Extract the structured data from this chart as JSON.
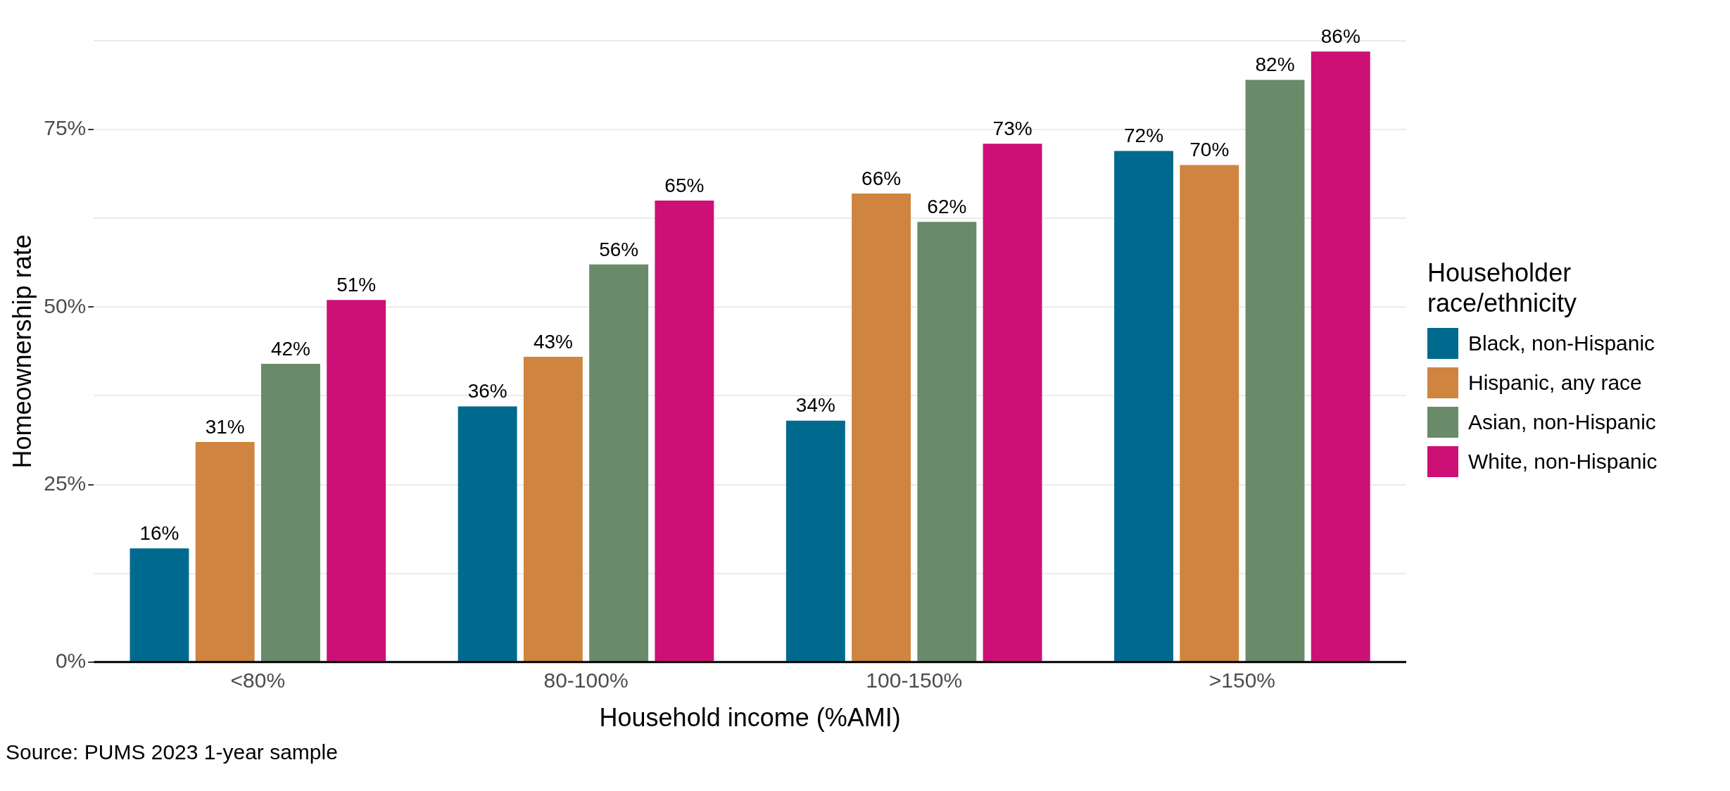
{
  "chart_data": {
    "type": "bar",
    "xlabel": "Household income (%AMI)",
    "ylabel": "Homeownership rate",
    "legend_title": "Householder race/ethnicity",
    "categories": [
      "<80%",
      "80-100%",
      "100-150%",
      ">150%"
    ],
    "series": [
      {
        "name": "Black, non-Hispanic",
        "color": "#006a8e",
        "values": [
          16,
          36,
          34,
          72
        ],
        "value_labels": [
          "16%",
          "36%",
          "34%",
          "72%"
        ]
      },
      {
        "name": "Hispanic, any race",
        "color": "#cf853f",
        "values": [
          31,
          43,
          66,
          70
        ],
        "value_labels": [
          "31%",
          "43%",
          "66%",
          "70%"
        ]
      },
      {
        "name": "Asian, non-Hispanic",
        "color": "#6a8b6a",
        "values": [
          42,
          56,
          62,
          82
        ],
        "value_labels": [
          "42%",
          "56%",
          "62%",
          "82%"
        ]
      },
      {
        "name": "White, non-Hispanic",
        "color": "#cd1076",
        "values": [
          51,
          65,
          73,
          86
        ],
        "value_labels": [
          "51%",
          "65%",
          "73%",
          "86%"
        ]
      }
    ],
    "ylim": [
      0,
      87.5
    ],
    "yticks": [
      {
        "value": 0,
        "label": "0%"
      },
      {
        "value": 12.5,
        "label": null
      },
      {
        "value": 25,
        "label": "25%"
      },
      {
        "value": 37.5,
        "label": null
      },
      {
        "value": 50,
        "label": "50%"
      },
      {
        "value": 62.5,
        "label": null
      },
      {
        "value": 75,
        "label": "75%"
      },
      {
        "value": 87.5,
        "label": null
      }
    ],
    "grid": "y",
    "legend": "right",
    "annotations": [
      "Source: PUMS 2023 1-year sample"
    ]
  }
}
